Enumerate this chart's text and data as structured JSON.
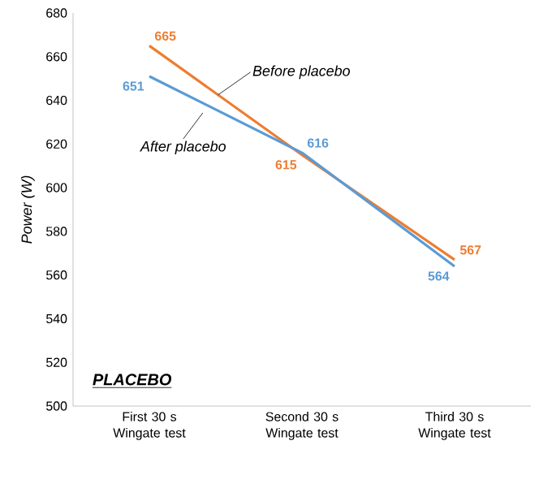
{
  "chart_data": {
    "type": "line",
    "ylabel": "Power (W)",
    "categories": [
      "First 30 s Wingate test",
      "Second 30 s Wingate test",
      "Third 30 s Wingate test"
    ],
    "series": [
      {
        "name": "Before placebo",
        "color": "#ed7d31",
        "values": [
          665,
          615,
          567
        ]
      },
      {
        "name": "After placebo",
        "color": "#5b9bd5",
        "values": [
          651,
          616,
          564
        ]
      }
    ],
    "ylim": [
      500,
      680
    ],
    "yticks": [
      500,
      520,
      540,
      560,
      580,
      600,
      620,
      640,
      660,
      680
    ],
    "data_labels": true,
    "marker": "none",
    "line_style": "solid",
    "annotations": [
      "PLACEBO"
    ]
  }
}
